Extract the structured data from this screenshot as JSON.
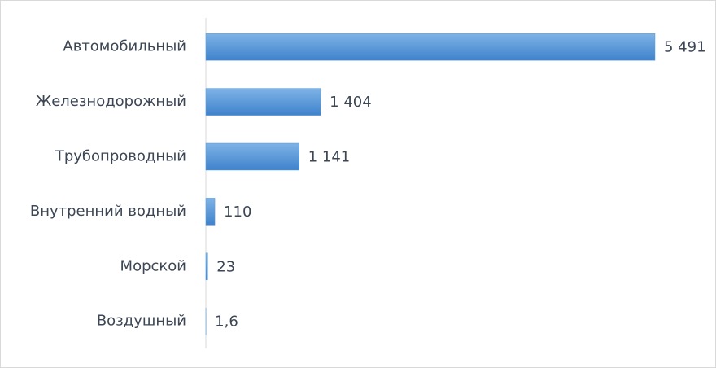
{
  "chart_data": {
    "type": "bar",
    "orientation": "horizontal",
    "categories": [
      "Автомобильный",
      "Железнодорожный",
      "Трубопроводный",
      "Внутренний водный",
      "Морской",
      "Воздушный"
    ],
    "values": [
      5491,
      1404,
      1141,
      110,
      23,
      1.6
    ],
    "value_labels": [
      "5 491",
      "1 404",
      "1 141",
      "110",
      "23",
      "1,6"
    ],
    "color": "#5b9bd5"
  }
}
